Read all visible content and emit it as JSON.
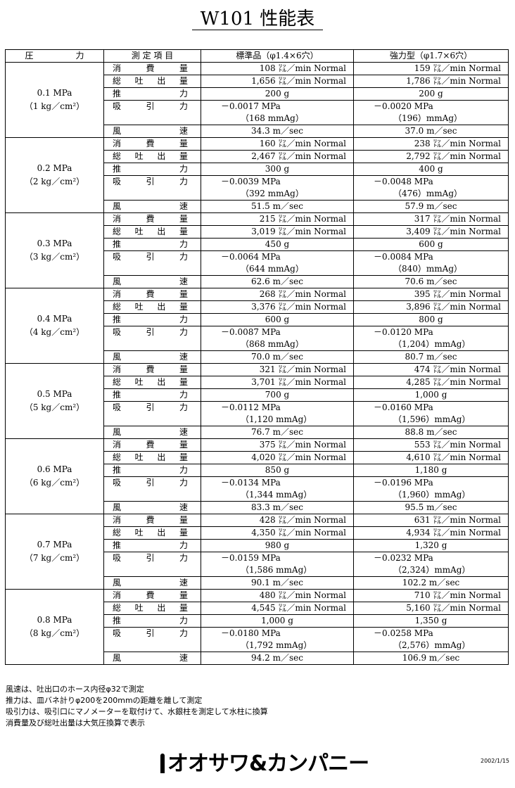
{
  "title": "W101 性能表",
  "headers": [
    "圧　　　　　力",
    "測 定 項 目",
    "標準品（φ1.4×6穴）",
    "強力型（φ1.7×6穴）"
  ],
  "item_labels": {
    "consumption": "消 費 量",
    "total": "総 吐 出 量",
    "thrust": "推 力",
    "suction": "吸 引 力",
    "wind": "風 速"
  },
  "groups": [
    {
      "pressure": "0.1 MPa",
      "pressure_kg": "（1 kg／cm²）",
      "std": {
        "consumption": "108 ㍑／min Normal",
        "total": "1,656 ㍑／min Normal",
        "thrust": "200 g",
        "suction": "－0.0017 MPa",
        "suction_mmaq": "（168 mmAg）",
        "wind": "34.3 m／sec"
      },
      "strong": {
        "consumption": "159 ㍑／min Normal",
        "total": "1,786 ㍑／min Normal",
        "thrust": "200 g",
        "suction": "－0.0020 MPa",
        "suction_mmaq": "（196）mmAg）",
        "wind": "37.0 m／sec"
      }
    },
    {
      "pressure": "0.2 MPa",
      "pressure_kg": "（2 kg／cm²）",
      "std": {
        "consumption": "160 ㍑／min Normal",
        "total": "2,467 ㍑／min Normal",
        "thrust": "300 g",
        "suction": "－0.0039 MPa",
        "suction_mmaq": "（392 mmAg）",
        "wind": "51.5 m／sec"
      },
      "strong": {
        "consumption": "238 ㍑／min Normal",
        "total": "2,792 ㍑／min Normal",
        "thrust": "400 g",
        "suction": "－0.0048 MPa",
        "suction_mmaq": "（476）mmAg）",
        "wind": "57.9 m／sec"
      }
    },
    {
      "pressure": "0.3 MPa",
      "pressure_kg": "（3 kg／cm²）",
      "std": {
        "consumption": "215 ㍑／min Normal",
        "total": "3,019 ㍑／min Normal",
        "thrust": "450 g",
        "suction": "－0.0064 MPa",
        "suction_mmaq": "（644 mmAg）",
        "wind": "62.6 m／sec"
      },
      "strong": {
        "consumption": "317 ㍑／min Normal",
        "total": "3,409 ㍑／min Normal",
        "thrust": "600 g",
        "suction": "－0.0084 MPa",
        "suction_mmaq": "（840）mmAg）",
        "wind": "70.6 m／sec"
      }
    },
    {
      "pressure": "0.4 MPa",
      "pressure_kg": "（4 kg／cm²）",
      "std": {
        "consumption": "268 ㍑／min Normal",
        "total": "3,376 ㍑／min Normal",
        "thrust": "600 g",
        "suction": "－0.0087 MPa",
        "suction_mmaq": "（868 mmAg）",
        "wind": "70.0 m／sec"
      },
      "strong": {
        "consumption": "395 ㍑／min Normal",
        "total": "3,896 ㍑／min Normal",
        "thrust": "800 g",
        "suction": "－0.0120 MPa",
        "suction_mmaq": "（1,204）mmAg）",
        "wind": "80.7 m／sec"
      }
    },
    {
      "pressure": "0.5 MPa",
      "pressure_kg": "（5 kg／cm²）",
      "std": {
        "consumption": "321 ㍑／min Normal",
        "total": "3,701 ㍑／min Normal",
        "thrust": "700 g",
        "suction": "－0.0112 MPa",
        "suction_mmaq": "（1,120 mmAg）",
        "wind": "76.7 m／sec"
      },
      "strong": {
        "consumption": "474 ㍑／min Normal",
        "total": "4,285 ㍑／min Normal",
        "thrust": "1,000 g",
        "suction": "－0.0160 MPa",
        "suction_mmaq": "（1,596）mmAg）",
        "wind": "88.8 m／sec"
      }
    },
    {
      "pressure": "0.6 MPa",
      "pressure_kg": "（6 kg／cm²）",
      "std": {
        "consumption": "375 ㍑／min Normal",
        "total": "4,020 ㍑／min Normal",
        "thrust": "850 g",
        "suction": "－0.0134 MPa",
        "suction_mmaq": "（1,344 mmAg）",
        "wind": "83.3 m／sec"
      },
      "strong": {
        "consumption": "553 ㍑／min Normal",
        "total": "4,610 ㍑／min Normal",
        "thrust": "1,180 g",
        "suction": "－0.0196 MPa",
        "suction_mmaq": "（1,960）mmAg）",
        "wind": "95.5 m／sec"
      }
    },
    {
      "pressure": "0.7 MPa",
      "pressure_kg": "（7 kg／cm²）",
      "std": {
        "consumption": "428 ㍑／min Normal",
        "total": "4,350 ㍑／min Normal",
        "thrust": "980 g",
        "suction": "－0.0159 MPa",
        "suction_mmaq": "（1,586 mmAg）",
        "wind": "90.1 m／sec"
      },
      "strong": {
        "consumption": "631 ㍑／min Normal",
        "total": "4,934 ㍑／min Normal",
        "thrust": "1,320 g",
        "suction": "－0.0232 MPa",
        "suction_mmaq": "（2,324）mmAg）",
        "wind": "102.2 m／sec"
      }
    },
    {
      "pressure": "0.8 MPa",
      "pressure_kg": "（8 kg／cm²）",
      "std": {
        "consumption": "480 ㍑／min Normal",
        "total": "4,545 ㍑／min Normal",
        "thrust": "1,000 g",
        "suction": "－0.0180 MPa",
        "suction_mmaq": "（1,792 mmAg）",
        "wind": "94.2 m／sec"
      },
      "strong": {
        "consumption": "710 ㍑／min Normal",
        "total": "5,160 ㍑／min Normal",
        "thrust": "1,350 g",
        "suction": "－0.0258 MPa",
        "suction_mmaq": "（2,576）mmAg）",
        "wind": "106.9 m／sec"
      }
    }
  ],
  "notes": [
    "風速は、吐出口のホース内径φ32で測定",
    "推力は、皿バネ計りφ200を200mmの距離を離して測定",
    "吸引力は、吸引口にマノメーターを取付けて、水銀柱を測定して水柱に換算",
    "消費量及び総吐出量は大気圧換算で表示"
  ],
  "logo_text": "オオサワ&カンパニー",
  "date": "2002/1/15"
}
